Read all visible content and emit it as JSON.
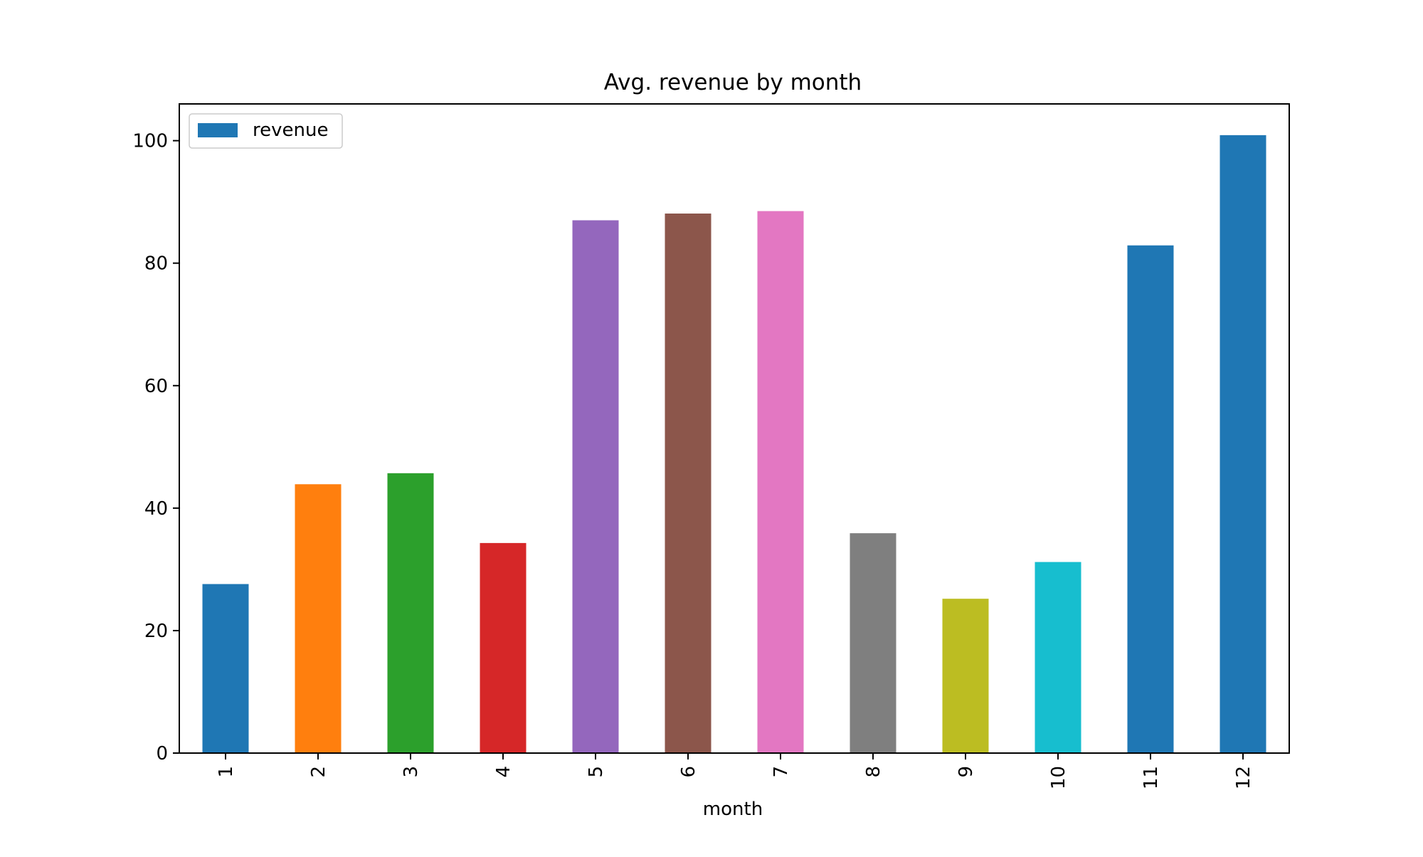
{
  "chart_data": {
    "type": "bar",
    "title": "Avg. revenue by month",
    "xlabel": "month",
    "ylabel": "",
    "categories": [
      "1",
      "2",
      "3",
      "4",
      "5",
      "6",
      "7",
      "8",
      "9",
      "10",
      "11",
      "12"
    ],
    "series": [
      {
        "name": "revenue",
        "values": [
          27.6,
          43.9,
          45.7,
          34.3,
          87.0,
          88.1,
          88.5,
          35.9,
          25.2,
          31.2,
          82.9,
          100.9
        ]
      }
    ],
    "bar_colors": [
      "#1f77b4",
      "#ff7f0e",
      "#2ca02c",
      "#d62728",
      "#9467bd",
      "#8c564b",
      "#e377c2",
      "#7f7f7f",
      "#bcbd22",
      "#17becf",
      "#1f77b4",
      "#1f77b4"
    ],
    "legend_color": "#1f77b4",
    "yticks": [
      0,
      20,
      40,
      60,
      80,
      100
    ],
    "ylim": [
      0,
      106
    ],
    "grid": false,
    "legend_position": "top-left",
    "xtick_rotation": "vertical"
  }
}
